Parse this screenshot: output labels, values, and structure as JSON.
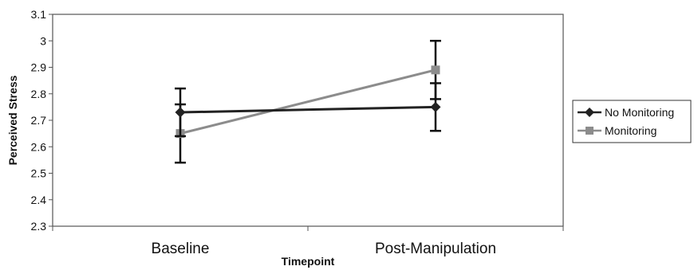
{
  "chart_data": {
    "type": "line",
    "title": "",
    "xlabel": "Timepoint",
    "ylabel": "Perceived Stress",
    "categories": [
      "Baseline",
      "Post-Manipulation"
    ],
    "ylim": [
      2.3,
      3.1
    ],
    "yticks": [
      "2.3",
      "2.4",
      "2.5",
      "2.6",
      "2.7",
      "2.8",
      "2.9",
      "3",
      "3.1"
    ],
    "grid": false,
    "legend_position": "right",
    "series": [
      {
        "name": "No Monitoring",
        "values": [
          2.73,
          2.75
        ],
        "error_low": [
          2.64,
          2.66
        ],
        "error_high": [
          2.82,
          2.84
        ],
        "marker": "diamond",
        "color": "#222222"
      },
      {
        "name": "Monitoring",
        "values": [
          2.65,
          2.89
        ],
        "error_low": [
          2.54,
          2.78
        ],
        "error_high": [
          2.76,
          3.0
        ],
        "marker": "square",
        "color": "#8c8c8c"
      }
    ]
  }
}
